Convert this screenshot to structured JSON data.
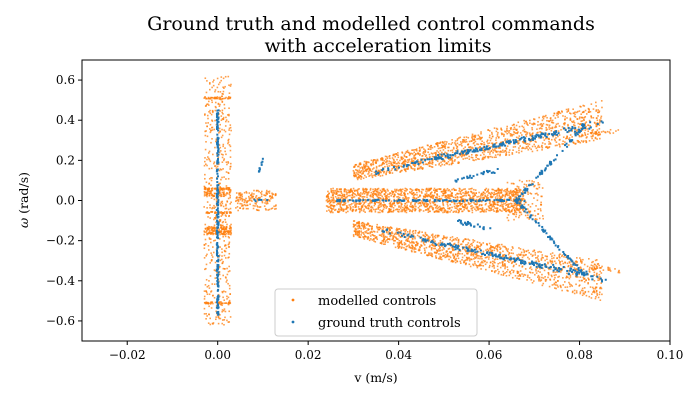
{
  "chart_data": {
    "type": "scatter",
    "title_lines": [
      "Ground truth and modelled control commands",
      "with acceleration limits"
    ],
    "xlabel": "v (m/s)",
    "ylabel_symbol": "ω",
    "ylabel_unit": " (rad/s)",
    "xlim": [
      -0.03,
      0.1
    ],
    "ylim": [
      -0.7,
      0.7
    ],
    "x_ticks": [
      -0.02,
      0.0,
      0.02,
      0.04,
      0.06,
      0.08,
      0.1
    ],
    "x_tick_labels": [
      "−0.02",
      "0.00",
      "0.02",
      "0.04",
      "0.06",
      "0.08",
      "0.10"
    ],
    "y_ticks": [
      -0.6,
      -0.4,
      -0.2,
      0.0,
      0.2,
      0.4,
      0.6
    ],
    "y_tick_labels": [
      "−0.6",
      "−0.4",
      "−0.2",
      "0.0",
      "0.2",
      "0.4",
      "0.6"
    ],
    "grid": false,
    "legend_position": "lower-center",
    "series": [
      {
        "name": "modelled controls",
        "color": "#ff7f0e",
        "marker": "dot",
        "regions": [
          {
            "shape": "box",
            "x": [
              -0.003,
              0.003
            ],
            "y": [
              -0.62,
              0.62
            ],
            "count": 520
          },
          {
            "shape": "hline",
            "x": [
              -0.003,
              0.003
            ],
            "y": 0.51,
            "count": 40
          },
          {
            "shape": "hline",
            "x": [
              -0.003,
              0.003
            ],
            "y": -0.51,
            "count": 40
          },
          {
            "shape": "hline",
            "x": [
              -0.003,
              0.003
            ],
            "y": 0.06,
            "count": 40
          },
          {
            "shape": "hline",
            "x": [
              -0.003,
              0.003
            ],
            "y": -0.06,
            "count": 40
          },
          {
            "shape": "box",
            "x": [
              -0.003,
              0.003
            ],
            "y": [
              -0.17,
              -0.13
            ],
            "count": 140
          },
          {
            "shape": "box",
            "x": [
              -0.003,
              0.003
            ],
            "y": [
              0.02,
              0.06
            ],
            "count": 90
          },
          {
            "shape": "box",
            "x": [
              0.004,
              0.013
            ],
            "y": [
              -0.05,
              0.05
            ],
            "count": 160
          },
          {
            "shape": "box",
            "x": [
              0.024,
              0.068
            ],
            "y": [
              -0.06,
              0.06
            ],
            "count": 1500
          },
          {
            "shape": "box",
            "x": [
              0.064,
              0.072
            ],
            "y": [
              -0.1,
              0.1
            ],
            "count": 120
          },
          {
            "shape": "band",
            "x": [
              0.03,
              0.085
            ],
            "center": [
              0.14,
              0.4
            ],
            "width": [
              0.08,
              0.2
            ],
            "count": 1300
          },
          {
            "shape": "band",
            "x": [
              0.03,
              0.085
            ],
            "center": [
              -0.14,
              -0.4
            ],
            "width": [
              0.08,
              0.2
            ],
            "count": 1300
          },
          {
            "shape": "line",
            "x": [
              0.082,
              0.089
            ],
            "y": [
              0.33,
              0.35
            ],
            "count": 25
          },
          {
            "shape": "line",
            "x": [
              0.082,
              0.089
            ],
            "y": [
              -0.33,
              -0.35
            ],
            "count": 25
          }
        ]
      },
      {
        "name": "ground truth controls",
        "color": "#1f77b4",
        "marker": "dot",
        "regions": [
          {
            "shape": "vline",
            "x": 0.0,
            "y": [
              -0.57,
              0.46
            ],
            "count": 200
          },
          {
            "shape": "hline",
            "x": [
              0.026,
              0.068
            ],
            "y": 0.0,
            "count": 130
          },
          {
            "shape": "line",
            "x": [
              0.035,
              0.086
            ],
            "y": [
              0.14,
              0.4
            ],
            "count": 110
          },
          {
            "shape": "line",
            "x": [
              0.035,
              0.086
            ],
            "y": [
              -0.14,
              -0.4
            ],
            "count": 110
          },
          {
            "shape": "line",
            "x": [
              0.045,
              0.083
            ],
            "y": [
              0.2,
              0.37
            ],
            "count": 80
          },
          {
            "shape": "line",
            "x": [
              0.045,
              0.083
            ],
            "y": [
              -0.2,
              -0.37
            ],
            "count": 80
          },
          {
            "shape": "line",
            "x": [
              0.066,
              0.081
            ],
            "y": [
              0.0,
              0.37
            ],
            "count": 70
          },
          {
            "shape": "line",
            "x": [
              0.066,
              0.081
            ],
            "y": [
              0.0,
              -0.37
            ],
            "count": 70
          },
          {
            "shape": "line",
            "x": [
              0.052,
              0.062
            ],
            "y": [
              0.1,
              0.15
            ],
            "count": 25
          },
          {
            "shape": "line",
            "x": [
              0.052,
              0.062
            ],
            "y": [
              -0.1,
              -0.15
            ],
            "count": 25
          },
          {
            "shape": "line",
            "x": [
              0.009,
              0.01
            ],
            "y": [
              0.14,
              0.2
            ],
            "count": 10
          },
          {
            "shape": "hline",
            "x": [
              0.008,
              0.011
            ],
            "y": 0.0,
            "count": 6
          }
        ]
      }
    ]
  }
}
